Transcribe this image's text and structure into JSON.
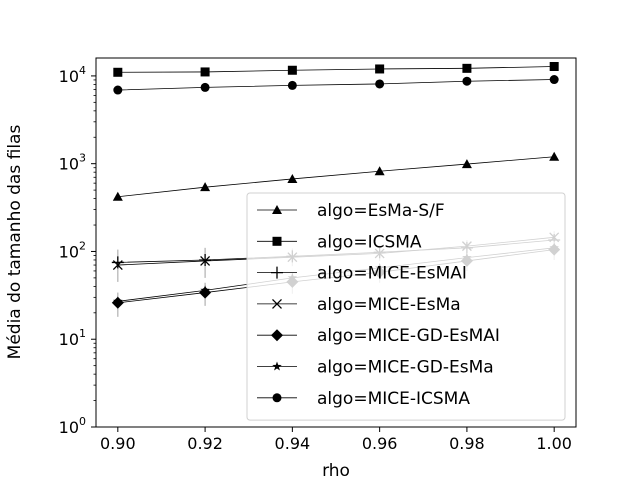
{
  "chart_data": {
    "type": "line",
    "title": "",
    "xlabel": "rho",
    "ylabel": "Média do tamanho das filas",
    "x": [
      0.9,
      0.92,
      0.94,
      0.96,
      0.98,
      1.0
    ],
    "xlim": [
      0.895,
      1.005
    ],
    "ylim": [
      1,
      16000
    ],
    "yscale": "log",
    "x_tick_values": [
      0.9,
      0.92,
      0.94,
      0.96,
      0.98,
      1.0
    ],
    "x_tick_labels": [
      "0.90",
      "0.92",
      "0.94",
      "0.96",
      "0.98",
      "1.00"
    ],
    "y_tick_values": [
      1,
      10,
      100,
      1000,
      10000
    ],
    "y_tick_labels": [
      {
        "base": "10",
        "exp": "0"
      },
      {
        "base": "10",
        "exp": "1"
      },
      {
        "base": "10",
        "exp": "2"
      },
      {
        "base": "10",
        "exp": "3"
      },
      {
        "base": "10",
        "exp": "4"
      }
    ],
    "grid": false,
    "legend_position": "lower-right",
    "series": [
      {
        "name": "algo=EsMa-S/F",
        "marker": "triangle",
        "color": "#000000",
        "values": [
          420,
          540,
          670,
          820,
          990,
          1200
        ],
        "errors": [
          0,
          0,
          0,
          0,
          0,
          0
        ]
      },
      {
        "name": "algo=ICSMA",
        "marker": "square",
        "color": "#000000",
        "values": [
          11000,
          11100,
          11600,
          12000,
          12200,
          12800
        ],
        "errors": [
          0,
          0,
          0,
          0,
          0,
          0
        ]
      },
      {
        "name": "algo=MICE-EsMAI",
        "marker": "plus",
        "color": "#000000",
        "values": [
          75,
          80,
          88,
          98,
          110,
          135
        ],
        "errors": [
          30,
          30,
          20,
          20,
          25,
          35
        ]
      },
      {
        "name": "algo=MICE-EsMa",
        "marker": "x",
        "color": "#000000",
        "values": [
          70,
          78,
          86,
          95,
          115,
          145
        ],
        "errors": [
          0,
          0,
          0,
          0,
          0,
          0
        ]
      },
      {
        "name": "algo=MICE-GD-EsMAI",
        "marker": "diamond",
        "color": "#000000",
        "values": [
          26,
          34,
          45,
          58,
          78,
          105
        ],
        "errors": [
          8,
          10,
          12,
          14,
          18,
          25
        ]
      },
      {
        "name": "algo=MICE-GD-EsMa",
        "marker": "star",
        "color": "#000000",
        "values": [
          27,
          36,
          50,
          65,
          85,
          110
        ],
        "errors": [
          0,
          0,
          0,
          0,
          0,
          0
        ]
      },
      {
        "name": "algo=MICE-ICSMA",
        "marker": "circle",
        "color": "#000000",
        "values": [
          6900,
          7400,
          7800,
          8100,
          8700,
          9100
        ],
        "errors": [
          0,
          0,
          0,
          0,
          0,
          0
        ]
      }
    ]
  }
}
